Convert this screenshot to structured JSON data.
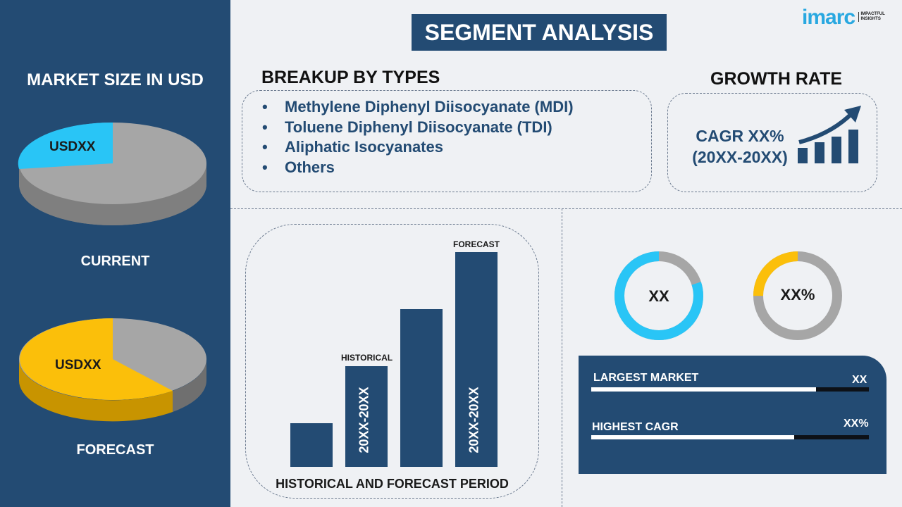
{
  "title": "SEGMENT ANALYSIS",
  "logo": {
    "brand": "imarc",
    "tagline": "IMPACTFUL INSIGHTS"
  },
  "left": {
    "heading": "MARKET SIZE IN USD",
    "current": {
      "label": "CURRENT",
      "value": "USDXX"
    },
    "forecast": {
      "label": "FORECAST",
      "value": "USDXX"
    }
  },
  "breakup": {
    "heading": "BREAKUP BY TYPES",
    "items": [
      "Methylene Diphenyl Diisocyanate (MDI)",
      "Toluene Diphenyl Diisocyanate (TDI)",
      "Aliphatic Isocyanates",
      "Others"
    ]
  },
  "growth": {
    "heading": "GROWTH RATE",
    "cagr": "CAGR XX%",
    "period": "(20XX-20XX)",
    "icon": "growth-chart-arrow-icon"
  },
  "period_chart": {
    "footer": "HISTORICAL AND FORECAST PERIOD",
    "historical_label": "HISTORICAL",
    "forecast_label": "FORECAST",
    "historical_range": "20XX-20XX",
    "forecast_range": "20XX-20XX"
  },
  "donuts": [
    {
      "value": "XX",
      "fill_percent": 80,
      "color": "#29c5f6"
    },
    {
      "value": "XX%",
      "fill_percent": 25,
      "color": "#fbbf0a"
    }
  ],
  "stats": [
    {
      "label": "LARGEST MARKET",
      "value": "XX",
      "fill_percent": 81
    },
    {
      "label": "HIGHEST CAGR",
      "value": "XX%",
      "fill_percent": 73
    }
  ],
  "colors": {
    "navy": "#234b73",
    "cyan": "#29c5f6",
    "yellow": "#fbbf0a",
    "gray": "#a6a6a6"
  }
}
